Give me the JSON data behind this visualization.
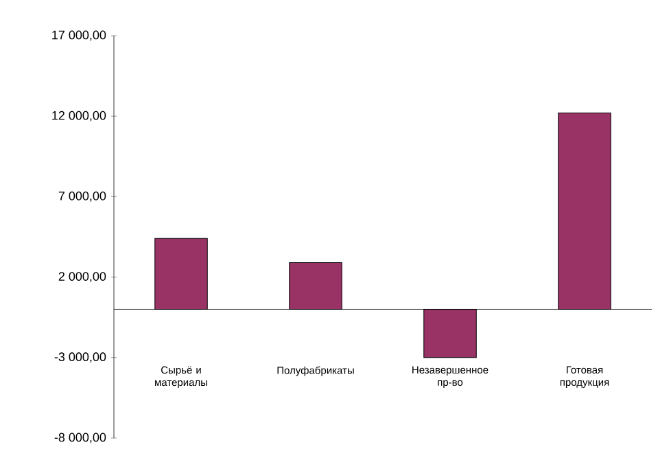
{
  "chart_data": {
    "type": "bar",
    "categories": [
      "Сырьё и материалы",
      "Полуфабрикаты",
      "Незавершенное пр-во",
      "Готовая продукция"
    ],
    "values": [
      4400,
      2900,
      -3000,
      12200
    ],
    "color": "#993366",
    "ylim": [
      -8000,
      17000
    ],
    "yticks": [
      {
        "value": -8000,
        "label": "-8 000,00"
      },
      {
        "value": -3000,
        "label": "-3 000,00"
      },
      {
        "value": 2000,
        "label": "2 000,00"
      },
      {
        "value": 7000,
        "label": "7 000,00"
      },
      {
        "value": 12000,
        "label": "12 000,00"
      },
      {
        "value": 17000,
        "label": "17 000,00"
      }
    ],
    "grid": false
  }
}
